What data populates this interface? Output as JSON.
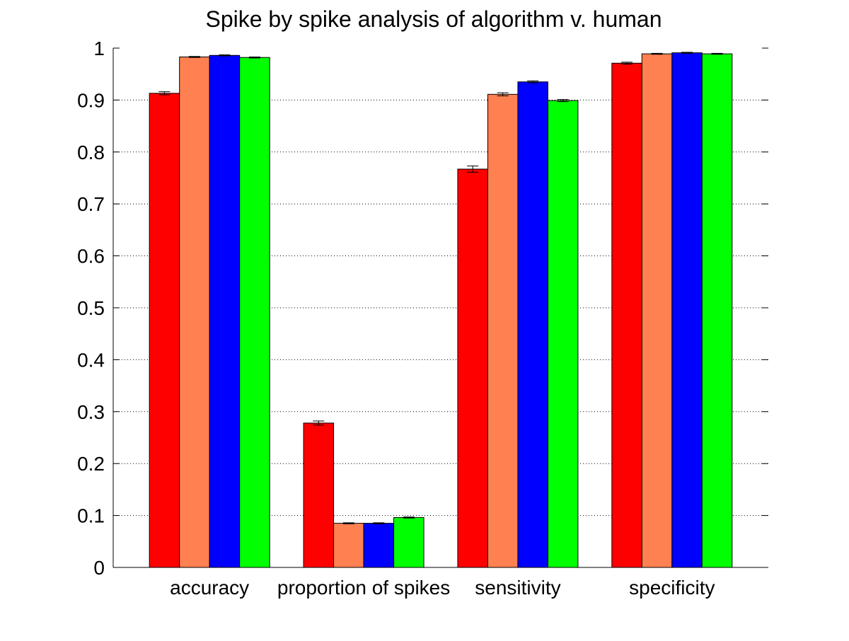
{
  "chart_data": {
    "type": "bar",
    "title": "Spike by spike analysis of algorithm v. human",
    "xlabel": "",
    "ylabel": "",
    "categories": [
      "accuracy",
      "proportion of spikes",
      "sensitivity",
      "specificity"
    ],
    "ylim": [
      0,
      1
    ],
    "yticks": [
      "0",
      "0.1",
      "0.2",
      "0.3",
      "0.4",
      "0.5",
      "0.6",
      "0.7",
      "0.8",
      "0.9",
      "1"
    ],
    "grid": true,
    "legend": "none",
    "series": [
      {
        "color": "#ff0000",
        "values": [
          0.913,
          0.278,
          0.767,
          0.971
        ],
        "errors": [
          0.003,
          0.004,
          0.006,
          0.002
        ]
      },
      {
        "color": "#ff8050",
        "values": [
          0.983,
          0.085,
          0.911,
          0.989
        ],
        "errors": [
          0.001,
          0.001,
          0.003,
          0.001
        ]
      },
      {
        "color": "#0000ff",
        "values": [
          0.986,
          0.085,
          0.935,
          0.991
        ],
        "errors": [
          0.001,
          0.001,
          0.002,
          0.001
        ]
      },
      {
        "color": "#00ff00",
        "values": [
          0.982,
          0.096,
          0.899,
          0.989
        ],
        "errors": [
          0.001,
          0.001,
          0.002,
          0.001
        ]
      }
    ]
  }
}
